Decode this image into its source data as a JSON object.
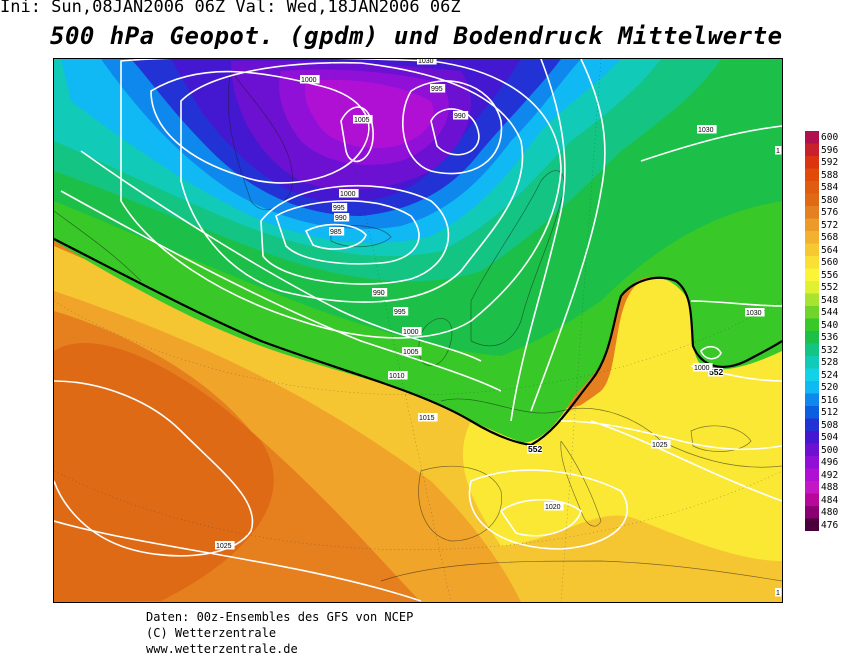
{
  "header": {
    "run_info": "Ini: Sun,08JAN2006 06Z Val: Wed,18JAN2006 06Z",
    "title": "500 hPa Geopot. (gpdm) und Bodendruck Mittelwerte"
  },
  "legend": {
    "levels": [
      "600",
      "596",
      "592",
      "588",
      "584",
      "580",
      "576",
      "572",
      "568",
      "564",
      "560",
      "556",
      "552",
      "548",
      "544",
      "540",
      "536",
      "532",
      "528",
      "524",
      "520",
      "516",
      "512",
      "508",
      "504",
      "500",
      "496",
      "492",
      "488",
      "484",
      "480",
      "476"
    ],
    "colors": [
      "#b0104d",
      "#c8202d",
      "#dc3410",
      "#e24a0a",
      "#e05c10",
      "#e06a14",
      "#e48020",
      "#ec9a2a",
      "#f2b230",
      "#f6c832",
      "#fae034",
      "#fcf436",
      "#e2f032",
      "#a6e430",
      "#70d42c",
      "#38c828",
      "#1cc048",
      "#14c482",
      "#12cab8",
      "#12d2e8",
      "#10b8f4",
      "#0e88ec",
      "#0c5ee0",
      "#2232d4",
      "#4418d0",
      "#6c10d2",
      "#9010d8",
      "#b010d4",
      "#c418c4",
      "#b8089c",
      "#8a0072",
      "#4a003a"
    ]
  },
  "map": {
    "contour_labels": [
      {
        "id": "l1000a",
        "text": "1000"
      },
      {
        "id": "l995a",
        "text": "995"
      },
      {
        "id": "l990a",
        "text": "990"
      },
      {
        "id": "l1005a",
        "text": "1005"
      },
      {
        "id": "l1000b",
        "text": "1000"
      },
      {
        "id": "l995b",
        "text": "995"
      },
      {
        "id": "l990b",
        "text": "990"
      },
      {
        "id": "l985",
        "text": "985"
      },
      {
        "id": "l990c",
        "text": "990"
      },
      {
        "id": "l995c",
        "text": "995"
      },
      {
        "id": "l1000c",
        "text": "1000"
      },
      {
        "id": "l1005b",
        "text": "1005"
      },
      {
        "id": "l1010",
        "text": "1010"
      },
      {
        "id": "l1015",
        "text": "1015"
      },
      {
        "id": "l1030a",
        "text": "1030"
      },
      {
        "id": "l1030b",
        "text": "1030"
      },
      {
        "id": "l1030c",
        "text": "1030"
      },
      {
        "id": "l1025a",
        "text": "1025"
      },
      {
        "id": "l1025b",
        "text": "1025"
      },
      {
        "id": "l1020",
        "text": "1020"
      },
      {
        "id": "l552a",
        "text": "552"
      },
      {
        "id": "l552b",
        "text": "552"
      },
      {
        "id": "l1000d",
        "text": "1000"
      },
      {
        "id": "l1e",
        "text": "1"
      },
      {
        "id": "l1w",
        "text": "1"
      }
    ]
  },
  "credits": {
    "line1": "Daten: 00z-Ensembles des GFS von NCEP",
    "line2": "(C) Wetterzentrale",
    "line3": "www.wetterzentrale.de"
  }
}
